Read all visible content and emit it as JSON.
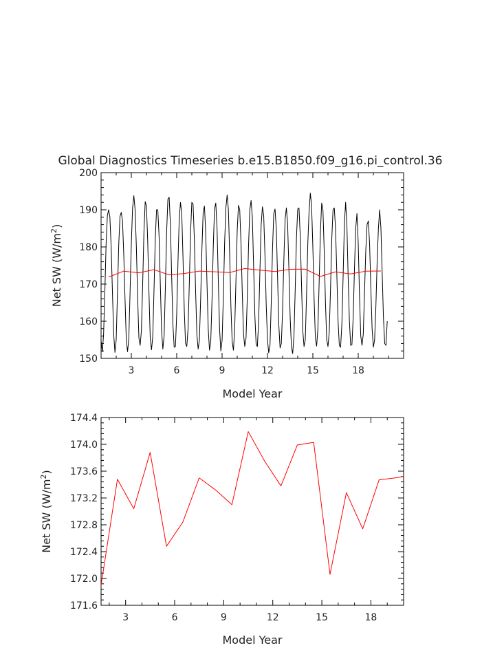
{
  "figure_title": "Global Diagnostics Timeseries b.e15.B1850.f09_g16.pi_control.36",
  "colors": {
    "monthly": "#000000",
    "annual": "#ff0000",
    "axes": "#000000"
  },
  "chart_data": [
    {
      "type": "line",
      "title": "Global Diagnostics Timeseries b.e15.B1850.f09_g16.pi_control.36",
      "xlabel": "Model Year",
      "ylabel": "Net SW (W/m²)",
      "ylabel_base": "Net SW (W/m",
      "ylabel_sup": "2",
      "ylabel_tail": ")",
      "xlim": [
        1,
        21
      ],
      "ylim": [
        150,
        200
      ],
      "x_ticks": [
        3,
        6,
        9,
        12,
        15,
        18
      ],
      "y_ticks": [
        150,
        160,
        170,
        180,
        190,
        200
      ],
      "y_tick_labels": [
        "150",
        "160",
        "170",
        "180",
        "190",
        "200"
      ],
      "grid": false,
      "series": [
        {
          "color": "#000000",
          "x_start": 1.0,
          "x_step": 0.083333,
          "values": [
            154.8,
            151.8,
            156.5,
            168.0,
            181.0,
            188.5,
            190.0,
            188.0,
            180.0,
            168.0,
            156.5,
            151.6,
            155.0,
            167.5,
            180.5,
            188.2,
            189.3,
            187.0,
            178.0,
            166.0,
            155.0,
            151.8,
            155.2,
            167.8,
            181.0,
            190.5,
            193.8,
            190.0,
            180.0,
            166.5,
            155.5,
            153.5,
            157.5,
            170.0,
            184.0,
            192.2,
            191.0,
            181.5,
            167.5,
            155.5,
            152.3,
            155.8,
            168.5,
            182.0,
            190.0,
            190.0,
            183.0,
            170.0,
            157.5,
            152.5,
            156.0,
            169.0,
            184.0,
            192.8,
            193.4,
            186.0,
            172.0,
            159.0,
            153.0,
            153.2,
            162.0,
            176.0,
            187.5,
            192.0,
            189.0,
            177.0,
            163.0,
            154.0,
            153.2,
            158.0,
            170.0,
            184.0,
            192.0,
            191.5,
            182.0,
            168.0,
            156.5,
            152.5,
            155.0,
            166.0,
            179.5,
            189.5,
            191.0,
            184.0,
            170.5,
            158.0,
            152.2,
            154.5,
            165.5,
            180.0,
            190.2,
            191.8,
            185.0,
            171.0,
            158.0,
            152.0,
            154.8,
            166.5,
            181.0,
            190.5,
            194.0,
            190.0,
            178.0,
            164.0,
            154.5,
            152.2,
            158.0,
            171.0,
            184.5,
            191.2,
            190.0,
            181.0,
            168.0,
            156.5,
            153.2,
            155.5,
            166.5,
            180.5,
            190.0,
            192.5,
            188.0,
            175.0,
            161.5,
            153.8,
            153.2,
            160.0,
            173.5,
            186.0,
            190.8,
            188.5,
            178.0,
            164.5,
            155.0,
            151.5,
            153.5,
            165.0,
            179.5,
            189.0,
            190.2,
            185.0,
            172.0,
            159.0,
            152.8,
            154.0,
            163.0,
            176.5,
            187.5,
            190.5,
            186.0,
            174.0,
            161.0,
            153.2,
            151.3,
            156.0,
            168.5,
            182.5,
            190.2,
            190.5,
            183.0,
            170.0,
            157.5,
            153.2,
            155.0,
            167.0,
            181.0,
            189.5,
            194.5,
            191.0,
            180.0,
            166.0,
            155.5,
            153.3,
            158.0,
            170.5,
            184.0,
            191.8,
            190.0,
            179.0,
            165.0,
            155.0,
            153.2,
            157.0,
            168.5,
            182.0,
            190.0,
            190.5,
            185.0,
            173.0,
            160.0,
            153.5,
            153.0,
            159.0,
            172.0,
            186.0,
            192.0,
            186.0,
            172.0,
            160.0,
            153.5,
            153.7,
            161.0,
            174.0,
            185.0,
            189.0,
            181.0,
            167.0,
            156.0,
            153.5,
            156.5,
            168.0,
            179.0,
            186.0,
            187.0,
            181.0,
            169.0,
            158.0,
            153.0,
            155.0,
            164.0,
            176.0,
            185.0,
            190.0,
            185.0,
            173.0,
            161.0,
            154.0,
            153.5,
            160.0
          ]
        },
        {
          "color": "#ff0000",
          "x": [
            1.5,
            2.5,
            3.5,
            4.5,
            5.5,
            6.5,
            7.5,
            8.5,
            9.5,
            10.5,
            11.5,
            12.5,
            13.5,
            14.5,
            15.5,
            16.5,
            17.5,
            18.5,
            19.5
          ],
          "values": [
            171.9,
            173.48,
            173.04,
            173.88,
            172.48,
            172.84,
            173.5,
            173.32,
            173.1,
            174.19,
            173.75,
            173.38,
            173.99,
            174.03,
            172.06,
            173.28,
            172.74,
            173.47,
            173.52
          ]
        }
      ]
    },
    {
      "type": "line",
      "xlabel": "Model Year",
      "ylabel": "Net SW (W/m²)",
      "ylabel_base": "Net SW (W/m",
      "ylabel_sup": "2",
      "ylabel_tail": ")",
      "xlim": [
        1.5,
        20.0
      ],
      "ylim": [
        171.6,
        174.4
      ],
      "x_ticks": [
        3,
        6,
        9,
        12,
        15,
        18
      ],
      "y_ticks": [
        171.6,
        172.0,
        172.4,
        172.8,
        173.2,
        173.6,
        174.0,
        174.4
      ],
      "y_tick_labels": [
        "171.6",
        "172.0",
        "172.4",
        "172.8",
        "173.2",
        "173.6",
        "174.0",
        "174.4"
      ],
      "grid": false,
      "series": [
        {
          "color": "#ff0000",
          "x": [
            1.5,
            2.5,
            3.5,
            4.5,
            5.5,
            6.5,
            7.5,
            8.5,
            9.5,
            10.5,
            11.5,
            12.5,
            13.5,
            14.5,
            15.5,
            16.5,
            17.5,
            18.5,
            19.5,
            20.0
          ],
          "values": [
            171.9,
            173.48,
            173.04,
            173.88,
            172.48,
            172.84,
            173.5,
            173.32,
            173.1,
            174.19,
            173.75,
            173.38,
            173.99,
            174.03,
            172.06,
            173.28,
            172.74,
            173.47,
            173.5,
            173.52
          ]
        }
      ]
    }
  ]
}
